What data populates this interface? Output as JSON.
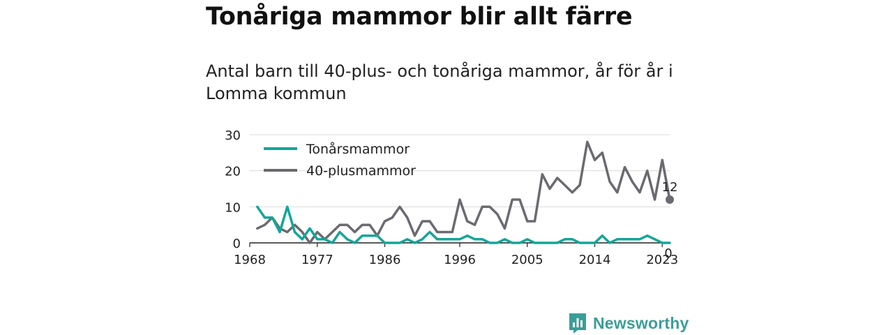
{
  "title": "Tonåriga mammor blir allt färre",
  "subtitle": "Antal barn till 40-plus- och tonåriga mammor, år för år i Lomma kommun",
  "brand": {
    "name": "Newsworthy",
    "color": "#3a9e98",
    "icon": "bar-chart-logo-icon"
  },
  "chart_data": {
    "type": "line",
    "title": "",
    "xlabel": "",
    "ylabel": "",
    "xlim": [
      1968,
      2024
    ],
    "ylim": [
      0,
      30
    ],
    "y_ticks": [
      0,
      10,
      20,
      30
    ],
    "x_ticks": [
      1968,
      1977,
      1986,
      1996,
      2005,
      2014,
      2023
    ],
    "grid": true,
    "legend": "top-left",
    "x": [
      1969,
      1970,
      1971,
      1972,
      1973,
      1974,
      1975,
      1976,
      1977,
      1978,
      1979,
      1980,
      1981,
      1982,
      1983,
      1984,
      1985,
      1986,
      1987,
      1988,
      1989,
      1990,
      1991,
      1992,
      1993,
      1994,
      1995,
      1996,
      1997,
      1998,
      1999,
      2000,
      2001,
      2002,
      2003,
      2004,
      2005,
      2006,
      2007,
      2008,
      2009,
      2010,
      2011,
      2012,
      2013,
      2014,
      2015,
      2016,
      2017,
      2018,
      2019,
      2020,
      2021,
      2022,
      2023,
      2024
    ],
    "series": [
      {
        "name": "Tonårsmammor",
        "color": "#14a69a",
        "values": [
          10,
          7,
          7,
          3,
          10,
          3,
          1,
          4,
          1,
          1,
          0,
          3,
          1,
          0,
          2,
          2,
          2,
          0,
          0,
          0,
          1,
          0,
          1,
          3,
          1,
          1,
          1,
          1,
          2,
          1,
          1,
          0,
          0,
          1,
          0,
          0,
          1,
          0,
          0,
          0,
          0,
          1,
          1,
          0,
          0,
          0,
          2,
          0,
          1,
          1,
          1,
          1,
          2,
          1,
          0,
          0
        ],
        "end_label": "0"
      },
      {
        "name": "40-plusmammor",
        "color": "#6b6a70",
        "values": [
          4,
          5,
          7,
          4,
          3,
          5,
          3,
          0,
          3,
          1,
          3,
          5,
          5,
          3,
          5,
          5,
          2,
          6,
          7,
          10,
          7,
          2,
          6,
          6,
          3,
          3,
          3,
          12,
          6,
          5,
          10,
          10,
          8,
          4,
          12,
          12,
          6,
          6,
          19,
          15,
          18,
          16,
          14,
          16,
          28,
          23,
          25,
          17,
          14,
          21,
          17,
          14,
          20,
          12,
          23,
          12
        ],
        "end_label": "12"
      }
    ]
  }
}
